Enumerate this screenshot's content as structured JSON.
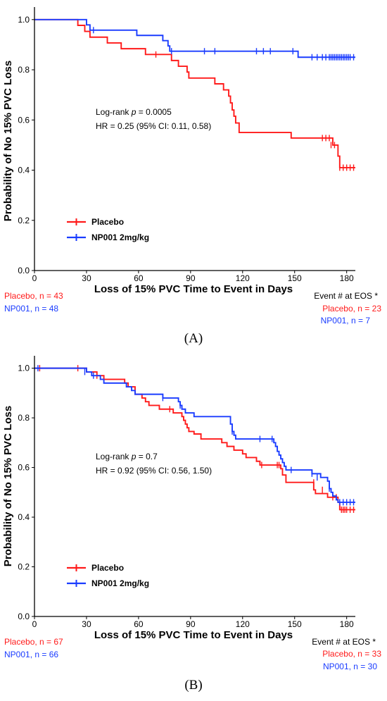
{
  "colors": {
    "placebo": "#ff1a1a",
    "np001": "#1a3cff"
  },
  "chart_data": [
    {
      "type": "line",
      "panel_label": "(A)",
      "xlabel": "Loss of 15% PVC Time to Event in Days",
      "ylabel": "Probability of No 15% PVC Loss",
      "xlim": [
        0,
        185
      ],
      "ylim": [
        0,
        1.05
      ],
      "x_ticks": [
        0,
        30,
        60,
        90,
        120,
        150,
        180
      ],
      "y_ticks": [
        0.0,
        0.2,
        0.4,
        0.6,
        0.8,
        1.0
      ],
      "grid": false,
      "legend_placement": "bottom-left",
      "annotation_line1": {
        "pre": "Log-rank ",
        "p": "p",
        "post": " = 0.0005"
      },
      "annotation_line2": "HR = 0.25 (95% CI: 0.11, 0.58)",
      "series": [
        {
          "name": "Placebo",
          "color_key": "placebo",
          "steps": [
            [
              0,
              1.0
            ],
            [
              25,
              0.977
            ],
            [
              29,
              0.953
            ],
            [
              32,
              0.93
            ],
            [
              42,
              0.907
            ],
            [
              50,
              0.884
            ],
            [
              64,
              0.861
            ],
            [
              79,
              0.837
            ],
            [
              83,
              0.814
            ],
            [
              88,
              0.791
            ],
            [
              89,
              0.767
            ],
            [
              104,
              0.744
            ],
            [
              109,
              0.72
            ],
            [
              112,
              0.695
            ],
            [
              113,
              0.668
            ],
            [
              114,
              0.64
            ],
            [
              115,
              0.615
            ],
            [
              116,
              0.588
            ],
            [
              118,
              0.55
            ],
            [
              148,
              0.528
            ],
            [
              172,
              0.5
            ],
            [
              175,
              0.456
            ],
            [
              176,
              0.41
            ],
            [
              185,
              0.41
            ]
          ],
          "censored": [
            [
              70,
              0.861
            ],
            [
              166,
              0.528
            ],
            [
              168,
              0.528
            ],
            [
              170,
              0.528
            ],
            [
              171,
              0.5
            ],
            [
              173,
              0.5
            ],
            [
              176,
              0.41
            ],
            [
              178,
              0.41
            ],
            [
              180,
              0.41
            ],
            [
              182,
              0.41
            ],
            [
              184,
              0.41
            ]
          ]
        },
        {
          "name": "NP001 2mg/kg",
          "color_key": "np001",
          "steps": [
            [
              0,
              1.0
            ],
            [
              30,
              0.979
            ],
            [
              32,
              0.958
            ],
            [
              59,
              0.937
            ],
            [
              74,
              0.916
            ],
            [
              77,
              0.895
            ],
            [
              78,
              0.874
            ],
            [
              152,
              0.85
            ],
            [
              185,
              0.85
            ]
          ],
          "censored": [
            [
              34,
              0.958
            ],
            [
              79,
              0.874
            ],
            [
              98,
              0.874
            ],
            [
              104,
              0.874
            ],
            [
              128,
              0.874
            ],
            [
              132,
              0.874
            ],
            [
              136,
              0.874
            ],
            [
              149,
              0.874
            ],
            [
              160,
              0.85
            ],
            [
              163,
              0.85
            ],
            [
              166,
              0.85
            ],
            [
              168,
              0.85
            ],
            [
              170,
              0.85
            ],
            [
              171,
              0.85
            ],
            [
              172,
              0.85
            ],
            [
              173,
              0.85
            ],
            [
              174,
              0.85
            ],
            [
              175,
              0.85
            ],
            [
              176,
              0.85
            ],
            [
              177,
              0.85
            ],
            [
              178,
              0.85
            ],
            [
              179,
              0.85
            ],
            [
              180,
              0.85
            ],
            [
              181,
              0.85
            ],
            [
              182,
              0.85
            ],
            [
              184,
              0.85
            ]
          ]
        }
      ],
      "n_placebo": "Placebo, n = 43",
      "n_np001": "NP001, n = 48",
      "eos_header": "Event # at EOS *",
      "eos_placebo": "Placebo, n = 23",
      "eos_np001": "NP001, n = 7"
    },
    {
      "type": "line",
      "panel_label": "(B)",
      "xlabel": "Loss of 15% PVC Time to Event in Days",
      "ylabel": "Probability of No 15% PVC Loss",
      "xlim": [
        0,
        185
      ],
      "ylim": [
        0,
        1.05
      ],
      "x_ticks": [
        0,
        30,
        60,
        90,
        120,
        150,
        180
      ],
      "y_ticks": [
        0.0,
        0.2,
        0.4,
        0.6,
        0.8,
        1.0
      ],
      "grid": false,
      "legend_placement": "bottom-left",
      "annotation_line1": {
        "pre": "Log-rank ",
        "p": "p",
        "post": " = 0.7"
      },
      "annotation_line2": "HR = 0.92 (95% CI: 0.56, 1.50)",
      "series": [
        {
          "name": "Placebo",
          "color_key": "placebo",
          "steps": [
            [
              0,
              1.0
            ],
            [
              30,
              0.985
            ],
            [
              36,
              0.97
            ],
            [
              40,
              0.955
            ],
            [
              52,
              0.94
            ],
            [
              54,
              0.925
            ],
            [
              58,
              0.895
            ],
            [
              62,
              0.88
            ],
            [
              64,
              0.865
            ],
            [
              66,
              0.85
            ],
            [
              72,
              0.835
            ],
            [
              80,
              0.82
            ],
            [
              85,
              0.805
            ],
            [
              86,
              0.79
            ],
            [
              87,
              0.775
            ],
            [
              88,
              0.76
            ],
            [
              89,
              0.745
            ],
            [
              92,
              0.735
            ],
            [
              96,
              0.715
            ],
            [
              108,
              0.7
            ],
            [
              111,
              0.685
            ],
            [
              115,
              0.67
            ],
            [
              120,
              0.655
            ],
            [
              122,
              0.64
            ],
            [
              128,
              0.625
            ],
            [
              130,
              0.61
            ],
            [
              142,
              0.595
            ],
            [
              143,
              0.57
            ],
            [
              145,
              0.54
            ],
            [
              161,
              0.51
            ],
            [
              162,
              0.495
            ],
            [
              169,
              0.48
            ],
            [
              175,
              0.46
            ],
            [
              176,
              0.43
            ],
            [
              185,
              0.43
            ]
          ],
          "censored": [
            [
              3,
              1.0
            ],
            [
              25,
              1.0
            ],
            [
              36,
              0.97
            ],
            [
              78,
              0.835
            ],
            [
              131,
              0.61
            ],
            [
              140,
              0.61
            ],
            [
              141,
              0.61
            ],
            [
              161,
              0.54
            ],
            [
              166,
              0.51
            ],
            [
              172,
              0.48
            ],
            [
              174,
              0.48
            ],
            [
              177,
              0.43
            ],
            [
              178,
              0.43
            ],
            [
              179,
              0.43
            ],
            [
              180,
              0.43
            ],
            [
              182,
              0.43
            ],
            [
              184,
              0.43
            ]
          ]
        },
        {
          "name": "NP001 2mg/kg",
          "color_key": "np001",
          "steps": [
            [
              0,
              1.0
            ],
            [
              30,
              0.985
            ],
            [
              33,
              0.97
            ],
            [
              38,
              0.955
            ],
            [
              40,
              0.94
            ],
            [
              53,
              0.925
            ],
            [
              56,
              0.91
            ],
            [
              58,
              0.895
            ],
            [
              74,
              0.88
            ],
            [
              83,
              0.865
            ],
            [
              84,
              0.85
            ],
            [
              85,
              0.835
            ],
            [
              87,
              0.82
            ],
            [
              92,
              0.805
            ],
            [
              113,
              0.775
            ],
            [
              114,
              0.745
            ],
            [
              115,
              0.73
            ],
            [
              116,
              0.715
            ],
            [
              138,
              0.7
            ],
            [
              139,
              0.685
            ],
            [
              140,
              0.665
            ],
            [
              141,
              0.65
            ],
            [
              142,
              0.635
            ],
            [
              143,
              0.62
            ],
            [
              144,
              0.605
            ],
            [
              145,
              0.59
            ],
            [
              160,
              0.575
            ],
            [
              165,
              0.56
            ],
            [
              169,
              0.545
            ],
            [
              170,
              0.515
            ],
            [
              171,
              0.5
            ],
            [
              172,
              0.485
            ],
            [
              174,
              0.47
            ],
            [
              175,
              0.46
            ],
            [
              185,
              0.46
            ]
          ],
          "censored": [
            [
              2,
              1.0
            ],
            [
              29,
              0.985
            ],
            [
              34,
              0.97
            ],
            [
              74,
              0.88
            ],
            [
              84,
              0.85
            ],
            [
              114,
              0.745
            ],
            [
              130,
              0.715
            ],
            [
              137,
              0.715
            ],
            [
              148,
              0.59
            ],
            [
              160,
              0.575
            ],
            [
              163,
              0.56
            ],
            [
              170,
              0.515
            ],
            [
              176,
              0.46
            ],
            [
              178,
              0.46
            ],
            [
              180,
              0.46
            ],
            [
              182,
              0.46
            ],
            [
              184,
              0.46
            ]
          ]
        }
      ],
      "n_placebo": "Placebo, n = 67",
      "n_np001": "NP001, n = 66",
      "eos_header": "Event # at EOS *",
      "eos_placebo": "Placebo, n = 33",
      "eos_np001": "NP001, n = 30"
    }
  ]
}
